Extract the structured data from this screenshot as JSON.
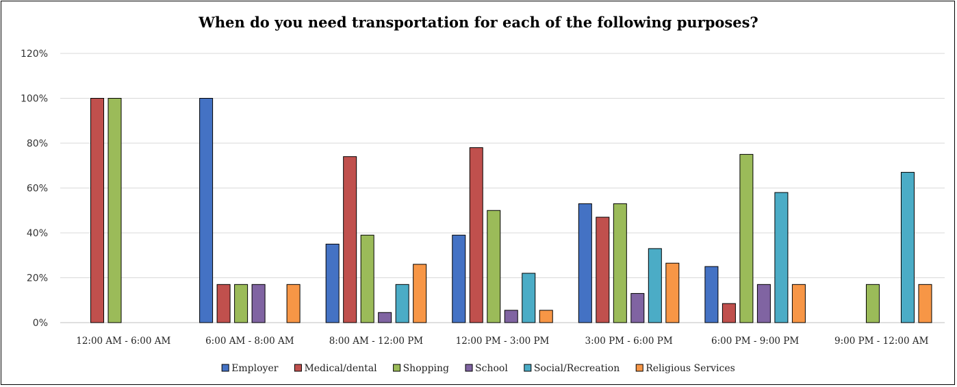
{
  "chart_data": {
    "type": "bar",
    "title": "When do you need transportation for each of the following purposes?",
    "xlabel": "",
    "ylabel": "",
    "ylim": [
      0,
      120
    ],
    "y_ticks": [
      "0%",
      "20%",
      "40%",
      "60%",
      "80%",
      "100%",
      "120%"
    ],
    "y_tick_values": [
      0,
      20,
      40,
      60,
      80,
      100,
      120
    ],
    "grid": true,
    "legend_position": "bottom",
    "categories": [
      "12:00 AM - 6:00 AM",
      "6:00 AM - 8:00 AM",
      "8:00 AM - 12:00 PM",
      "12:00 PM - 3:00 PM",
      "3:00 PM - 6:00 PM",
      "6:00 PM - 9:00 PM",
      "9:00 PM - 12:00 AM"
    ],
    "series": [
      {
        "name": "Employer",
        "color": "#4472C4",
        "values": [
          0,
          100,
          35,
          39,
          53,
          25,
          0
        ]
      },
      {
        "name": "Medical/dental",
        "color": "#C0504D",
        "values": [
          100,
          17,
          74,
          78,
          47,
          8.5,
          0
        ]
      },
      {
        "name": "Shopping",
        "color": "#9BBB59",
        "values": [
          100,
          17,
          39,
          50,
          53,
          75,
          17
        ]
      },
      {
        "name": "School",
        "color": "#8064A2",
        "values": [
          0,
          17,
          4.5,
          5.5,
          13,
          17,
          0
        ]
      },
      {
        "name": "Social/Recreation",
        "color": "#4BACC6",
        "values": [
          0,
          0,
          17,
          22,
          33,
          58,
          67
        ]
      },
      {
        "name": "Religious Services",
        "color": "#F79646",
        "values": [
          0,
          17,
          26,
          5.5,
          26.5,
          17,
          17
        ]
      }
    ]
  }
}
